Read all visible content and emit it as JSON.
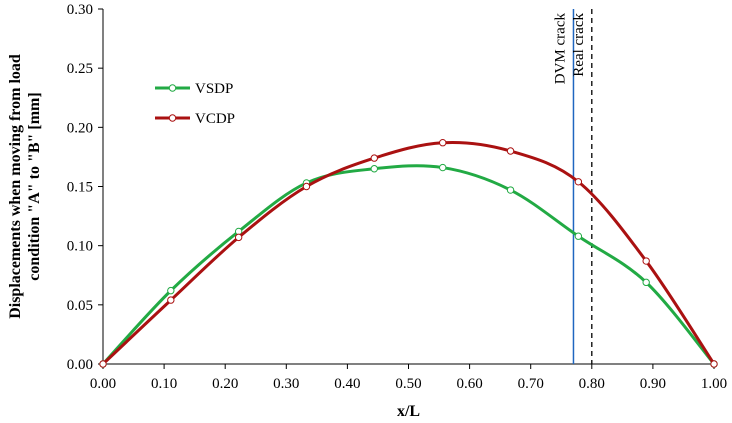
{
  "chart_data": {
    "type": "line",
    "title": "",
    "xlabel": "x/L",
    "ylabel": "Displacements when moving from load condition \"A\" to \"B\" [mm]",
    "ylabel_lines": [
      "Displacements when moving from load",
      "condition \"A\" to \"B\" [mm]"
    ],
    "xlim": [
      0,
      1.0
    ],
    "ylim": [
      0,
      0.3
    ],
    "x_ticks": [
      "0.00",
      "0.10",
      "0.20",
      "0.30",
      "0.40",
      "0.50",
      "0.60",
      "0.70",
      "0.80",
      "0.90",
      "1.00"
    ],
    "y_ticks": [
      "0.00",
      "0.05",
      "0.10",
      "0.15",
      "0.20",
      "0.25",
      "0.30"
    ],
    "x_tick_values": [
      0,
      0.1,
      0.2,
      0.3,
      0.4,
      0.5,
      0.6,
      0.7,
      0.8,
      0.9,
      1.0
    ],
    "y_tick_values": [
      0,
      0.05,
      0.1,
      0.15,
      0.2,
      0.25,
      0.3
    ],
    "grid": false,
    "legend_position": "top-left",
    "series": [
      {
        "name": "VSDP",
        "color": "#22aa44",
        "x": [
          0,
          0.111,
          0.222,
          0.333,
          0.444,
          0.556,
          0.667,
          0.778,
          0.889,
          1.0
        ],
        "values": [
          0,
          0.062,
          0.112,
          0.153,
          0.165,
          0.166,
          0.147,
          0.108,
          0.069,
          0
        ]
      },
      {
        "name": "VCDP",
        "color": "#aa1111",
        "x": [
          0,
          0.111,
          0.222,
          0.333,
          0.444,
          0.556,
          0.667,
          0.778,
          0.889,
          1.0
        ],
        "values": [
          0,
          0.054,
          0.107,
          0.15,
          0.174,
          0.187,
          0.18,
          0.154,
          0.087,
          0
        ]
      }
    ],
    "vertical_lines": [
      {
        "label": "DVM crack",
        "x": 0.77,
        "color": "#1f66c0",
        "style": "solid"
      },
      {
        "label": "Real crack",
        "x": 0.8,
        "color": "#000000",
        "style": "dashed"
      }
    ]
  }
}
